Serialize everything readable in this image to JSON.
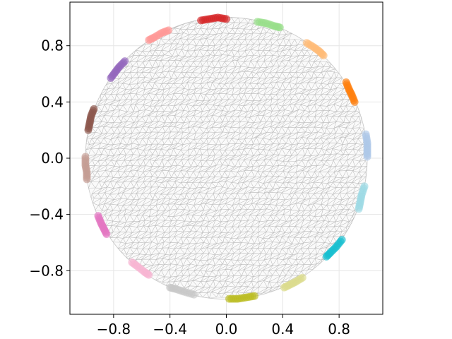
{
  "chart_data": {
    "type": "scatter",
    "title": "",
    "xlabel": "",
    "ylabel": "",
    "xlim": [
      -1.11,
      1.11
    ],
    "ylim": [
      -1.11,
      1.11
    ],
    "grid": true,
    "aspect": "equal",
    "background_mesh": {
      "shape": "unit-disk",
      "radius": 1.0,
      "style": "triangular mesh",
      "color": "#bdbdbd"
    },
    "xticks": [
      {
        "value": -0.8,
        "label": "−0.8"
      },
      {
        "value": -0.4,
        "label": "−0.4"
      },
      {
        "value": 0.0,
        "label": "0.0"
      },
      {
        "value": 0.4,
        "label": "0.4"
      },
      {
        "value": 0.8,
        "label": "0.8"
      }
    ],
    "yticks": [
      {
        "value": 0.8,
        "label": "0.8"
      },
      {
        "value": 0.4,
        "label": "0.4"
      },
      {
        "value": 0.0,
        "label": "0.0"
      },
      {
        "value": -0.4,
        "label": "−0.4"
      },
      {
        "value": -0.8,
        "label": "−0.8"
      }
    ],
    "clusters": [
      {
        "color": "#d62728",
        "x": [
          -0.18,
          -0.12,
          -0.06,
          0.0
        ],
        "y": [
          0.98,
          0.99,
          1.0,
          0.99
        ]
      },
      {
        "color": "#98df8a",
        "x": [
          0.22,
          0.28,
          0.34,
          0.38
        ],
        "y": [
          0.97,
          0.96,
          0.94,
          0.93
        ]
      },
      {
        "color": "#ffbb78",
        "x": [
          0.57,
          0.62,
          0.66,
          0.69
        ],
        "y": [
          0.82,
          0.79,
          0.76,
          0.73
        ]
      },
      {
        "color": "#ff7f0e",
        "x": [
          0.85,
          0.87,
          0.89,
          0.91
        ],
        "y": [
          0.54,
          0.49,
          0.45,
          0.4
        ]
      },
      {
        "color": "#aec7e8",
        "x": [
          0.99,
          1.0,
          1.0,
          1.0
        ],
        "y": [
          0.17,
          0.11,
          0.06,
          0.01
        ]
      },
      {
        "color": "#9edae5",
        "x": [
          0.98,
          0.96,
          0.95,
          0.94
        ],
        "y": [
          -0.2,
          -0.26,
          -0.31,
          -0.36
        ]
      },
      {
        "color": "#17becf",
        "x": [
          0.82,
          0.78,
          0.74,
          0.71
        ],
        "y": [
          -0.58,
          -0.63,
          -0.67,
          -0.7
        ]
      },
      {
        "color": "#dbdb8d",
        "x": [
          0.54,
          0.49,
          0.45,
          0.41
        ],
        "y": [
          -0.85,
          -0.88,
          -0.9,
          -0.92
        ]
      },
      {
        "color": "#bcbd22",
        "x": [
          0.2,
          0.14,
          0.08,
          0.02
        ],
        "y": [
          -0.98,
          -0.99,
          -1.0,
          -1.0
        ]
      },
      {
        "color": "#c7c7c7",
        "x": [
          -0.23,
          -0.3,
          -0.36,
          -0.4
        ],
        "y": [
          -0.97,
          -0.95,
          -0.93,
          -0.92
        ]
      },
      {
        "color": "#f7b6d2",
        "x": [
          -0.67,
          -0.63,
          -0.58,
          -0.55
        ],
        "y": [
          -0.74,
          -0.77,
          -0.81,
          -0.83
        ]
      },
      {
        "color": "#e377c2",
        "x": [
          -0.91,
          -0.89,
          -0.87,
          -0.85
        ],
        "y": [
          -0.41,
          -0.46,
          -0.5,
          -0.54
        ]
      },
      {
        "color": "#c49c94",
        "x": [
          -1.0,
          -1.0,
          -0.99,
          -0.99
        ],
        "y": [
          0.01,
          -0.05,
          -0.1,
          -0.15
        ]
      },
      {
        "color": "#8c564b",
        "x": [
          -0.94,
          -0.96,
          -0.97,
          -0.98
        ],
        "y": [
          0.35,
          0.3,
          0.25,
          0.2
        ]
      },
      {
        "color": "#9467bd",
        "x": [
          -0.72,
          -0.76,
          -0.79,
          -0.82
        ],
        "y": [
          0.69,
          0.65,
          0.61,
          0.57
        ]
      },
      {
        "color": "#ff9896",
        "x": [
          -0.41,
          -0.46,
          -0.51,
          -0.55
        ],
        "y": [
          0.91,
          0.89,
          0.86,
          0.84
        ]
      }
    ]
  }
}
